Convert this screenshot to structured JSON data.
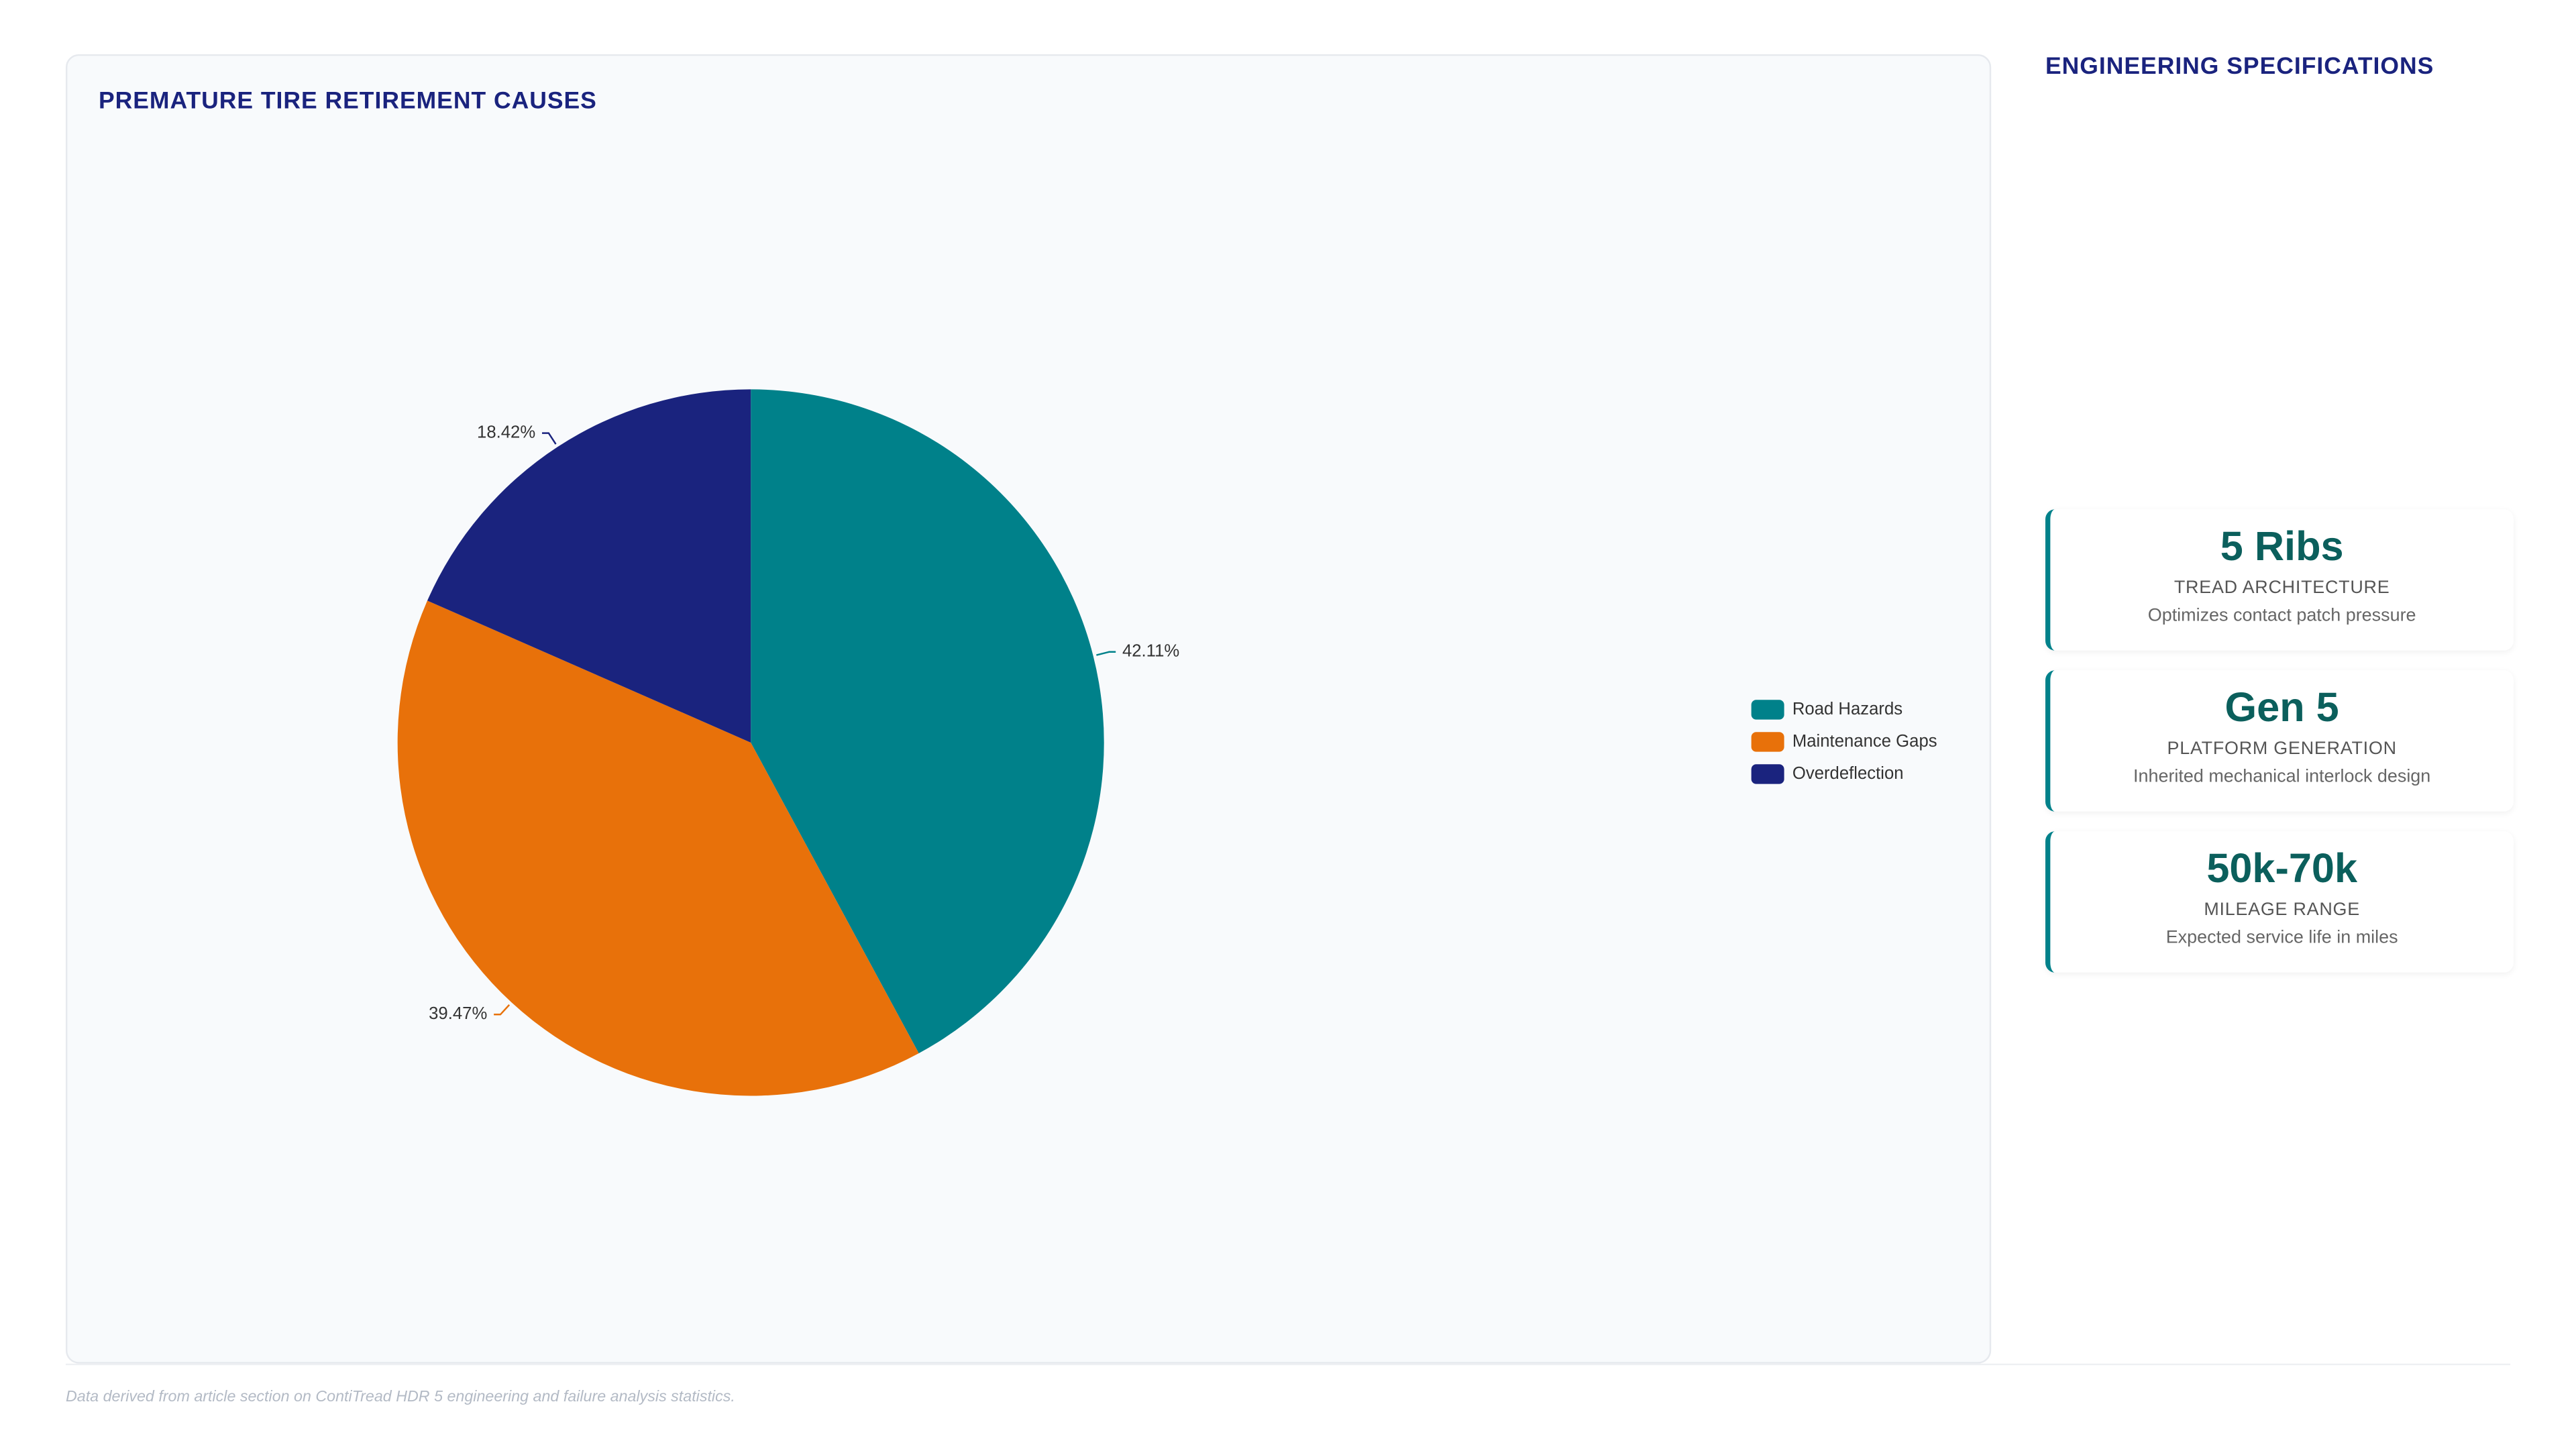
{
  "chart_data": {
    "type": "pie",
    "title": "PREMATURE TIRE RETIREMENT CAUSES",
    "categories": [
      "Road Hazards",
      "Maintenance Gaps",
      "Overdeflection"
    ],
    "values": [
      42.11,
      39.47,
      18.42
    ],
    "value_labels": [
      "42.11%",
      "39.47%",
      "18.42%"
    ],
    "colors": [
      "#00818a",
      "#e8710a",
      "#1a237e"
    ],
    "legend": "right"
  },
  "specs": {
    "title": "ENGINEERING SPECIFICATIONS",
    "cards": [
      {
        "value": "5 Ribs",
        "label": "TREAD ARCHITECTURE",
        "description": "Optimizes contact patch pressure"
      },
      {
        "value": "Gen 5",
        "label": "PLATFORM GENERATION",
        "description": "Inherited mechanical interlock design"
      },
      {
        "value": "50k-70k",
        "label": "MILEAGE RANGE",
        "description": "Expected service life in miles"
      }
    ]
  },
  "footnote": "Data derived from article section on ContiTread HDR 5 engineering and failure analysis statistics."
}
